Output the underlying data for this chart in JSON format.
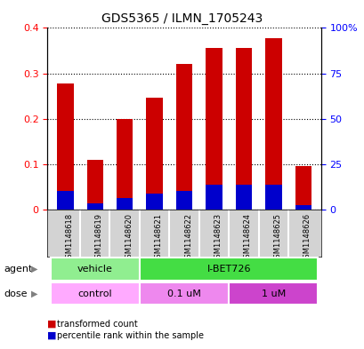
{
  "title": "GDS5365 / ILMN_1705243",
  "samples": [
    "GSM1148618",
    "GSM1148619",
    "GSM1148620",
    "GSM1148621",
    "GSM1148622",
    "GSM1148623",
    "GSM1148624",
    "GSM1148625",
    "GSM1148626"
  ],
  "transformed_count": [
    0.278,
    0.11,
    0.2,
    0.247,
    0.32,
    0.355,
    0.355,
    0.378,
    0.095
  ],
  "percentile_rank": [
    0.04,
    0.013,
    0.025,
    0.035,
    0.04,
    0.055,
    0.055,
    0.055,
    0.01
  ],
  "bar_color_red": "#cc0000",
  "bar_color_blue": "#0000cc",
  "ylim_left": [
    0,
    0.4
  ],
  "ylim_right": [
    0,
    100
  ],
  "yticks_left": [
    0,
    0.1,
    0.2,
    0.3,
    0.4
  ],
  "yticks_right": [
    0,
    25,
    50,
    75,
    100
  ],
  "ytick_labels_right": [
    "0",
    "25",
    "50",
    "75",
    "100%"
  ],
  "agent_labels": [
    {
      "text": "vehicle",
      "start": 0,
      "end": 2,
      "color": "#90ee90"
    },
    {
      "text": "I-BET726",
      "start": 3,
      "end": 8,
      "color": "#44dd44"
    }
  ],
  "dose_labels": [
    {
      "text": "control",
      "start": 0,
      "end": 2,
      "color": "#ffaaff"
    },
    {
      "text": "0.1 uM",
      "start": 3,
      "end": 5,
      "color": "#ee88ee"
    },
    {
      "text": "1 uM",
      "start": 6,
      "end": 8,
      "color": "#cc44cc"
    }
  ],
  "legend_red_label": "transformed count",
  "legend_blue_label": "percentile rank within the sample",
  "agent_row_label": "agent",
  "dose_row_label": "dose",
  "bg_color": "#d3d3d3",
  "plot_bg": "#ffffff"
}
